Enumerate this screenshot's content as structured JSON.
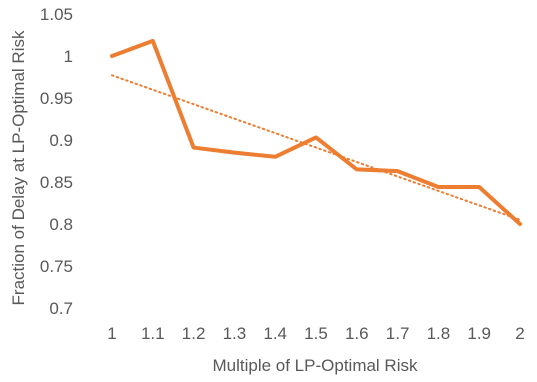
{
  "chart_data": {
    "type": "line",
    "title": "",
    "xlabel": "Multiple of LP-Optimal Risk",
    "ylabel": "Fraction of Delay at LP-Optimal Risk",
    "x": [
      "1",
      "1.1",
      "1.2",
      "1.3",
      "1.4",
      "1.5",
      "1.6",
      "1.7",
      "1.8",
      "1.9",
      "2"
    ],
    "y_ticks": [
      "0.7",
      "0.75",
      "0.8",
      "0.85",
      "0.9",
      "0.95",
      "1",
      "1.05"
    ],
    "ylim": [
      0.7,
      1.05
    ],
    "grid": false,
    "legend": "none",
    "series": [
      {
        "values": [
          1.0,
          1.018,
          0.891,
          0.885,
          0.88,
          0.903,
          0.865,
          0.863,
          0.844,
          0.844,
          0.8
        ],
        "color": "#ED7D31",
        "style": "solid"
      }
    ],
    "trendline": {
      "type": "linear",
      "start": 0.977,
      "end": 0.805,
      "color": "#ED7D31",
      "style": "dotted"
    }
  }
}
